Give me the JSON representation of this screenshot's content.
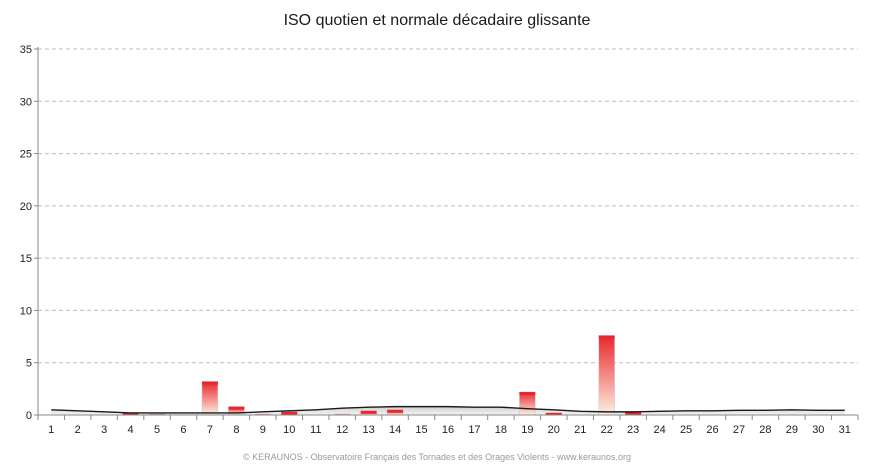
{
  "chart_data": {
    "type": "bar",
    "title": "ISO quotien et normale décadaire glissante",
    "xlabel": "",
    "ylabel": "",
    "ylim": [
      0,
      35
    ],
    "yticks": [
      0,
      5,
      10,
      15,
      20,
      25,
      30,
      35
    ],
    "grid": true,
    "categories": [
      "1",
      "2",
      "3",
      "4",
      "5",
      "6",
      "7",
      "8",
      "9",
      "10",
      "11",
      "12",
      "13",
      "14",
      "15",
      "16",
      "17",
      "18",
      "19",
      "20",
      "21",
      "22",
      "23",
      "24",
      "25",
      "26",
      "27",
      "28",
      "29",
      "30",
      "31"
    ],
    "series": [
      {
        "type": "bar",
        "values": [
          0,
          0,
          0,
          0.2,
          0.1,
          0,
          3.2,
          0.8,
          0.1,
          0.3,
          0,
          0.1,
          0.4,
          0.5,
          0,
          0,
          0,
          0,
          2.2,
          0.2,
          0,
          7.6,
          0.3,
          0,
          0,
          0,
          0,
          0,
          0,
          0,
          0
        ],
        "color_top": "#e8262b",
        "color_bottom": "#fdf0e2"
      },
      {
        "type": "line",
        "values": [
          0.5,
          0.4,
          0.3,
          0.2,
          0.2,
          0.2,
          0.2,
          0.2,
          0.3,
          0.4,
          0.5,
          0.65,
          0.75,
          0.8,
          0.8,
          0.8,
          0.75,
          0.75,
          0.6,
          0.5,
          0.35,
          0.3,
          0.3,
          0.35,
          0.4,
          0.4,
          0.45,
          0.45,
          0.5,
          0.45,
          0.45
        ],
        "color": "#1a1a1a"
      }
    ]
  },
  "footer": "© KERAUNOS - Observatoire Français des Tornades et des Orages Violents - www.keraunos.org"
}
